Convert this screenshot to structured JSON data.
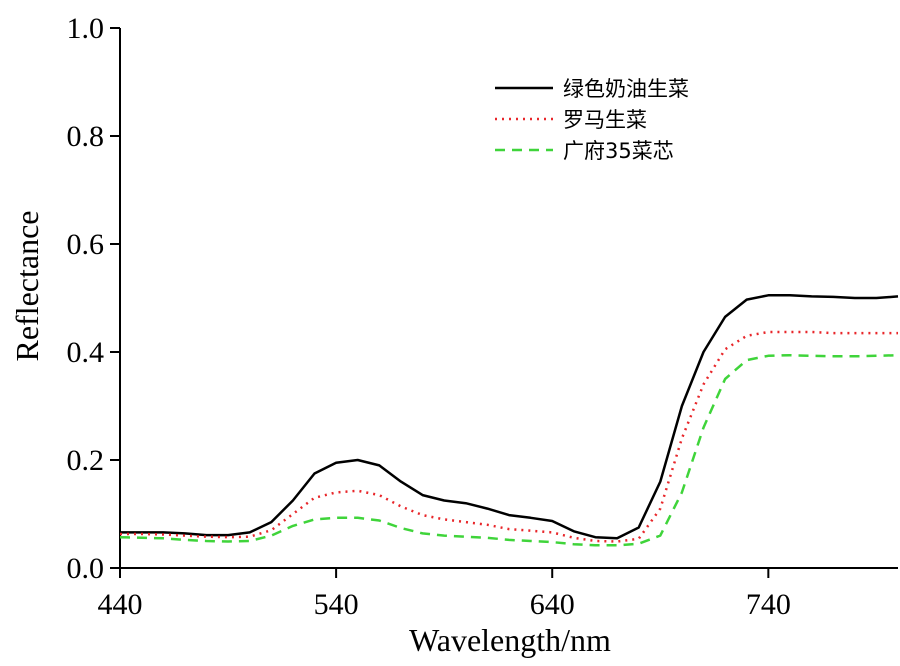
{
  "chart_data": {
    "type": "line",
    "title": "",
    "xlabel": "Wavelength/nm",
    "ylabel": "Reflectance",
    "xlim": [
      440,
      800
    ],
    "ylim": [
      0,
      1.0
    ],
    "xticks": [
      440,
      540,
      640,
      740
    ],
    "xtick_labels": [
      "440",
      "540",
      "640",
      "740"
    ],
    "yticks": [
      0,
      0.2,
      0.4,
      0.6,
      0.8,
      1.0
    ],
    "ytick_labels": [
      "0.0",
      "0.2",
      "0.4",
      "0.6",
      "0.8",
      "1.0"
    ],
    "grid": false,
    "legend_position": "top-right",
    "x": [
      440,
      450,
      460,
      470,
      480,
      490,
      500,
      510,
      520,
      530,
      540,
      550,
      560,
      570,
      580,
      590,
      600,
      610,
      620,
      630,
      640,
      650,
      660,
      670,
      680,
      690,
      700,
      710,
      720,
      730,
      740,
      750,
      760,
      770,
      780,
      790,
      800
    ],
    "series": [
      {
        "name": "绿色奶油生菜",
        "color": "#000000",
        "style": "solid",
        "values": [
          0.066,
          0.066,
          0.066,
          0.064,
          0.061,
          0.061,
          0.066,
          0.085,
          0.125,
          0.175,
          0.195,
          0.2,
          0.19,
          0.16,
          0.135,
          0.125,
          0.12,
          0.11,
          0.098,
          0.093,
          0.087,
          0.068,
          0.057,
          0.055,
          0.075,
          0.16,
          0.3,
          0.4,
          0.465,
          0.497,
          0.505,
          0.505,
          0.503,
          0.502,
          0.5,
          0.5,
          0.503
        ]
      },
      {
        "name": "罗马生菜",
        "color": "#e8262a",
        "style": "dotted",
        "values": [
          0.063,
          0.063,
          0.062,
          0.06,
          0.058,
          0.057,
          0.058,
          0.07,
          0.1,
          0.13,
          0.14,
          0.143,
          0.135,
          0.114,
          0.098,
          0.09,
          0.085,
          0.08,
          0.072,
          0.069,
          0.066,
          0.056,
          0.05,
          0.049,
          0.054,
          0.11,
          0.24,
          0.34,
          0.405,
          0.43,
          0.437,
          0.437,
          0.437,
          0.435,
          0.435,
          0.435,
          0.435
        ]
      },
      {
        "name": "广府35菜芯",
        "color": "#3fd43a",
        "style": "dashed",
        "values": [
          0.057,
          0.056,
          0.055,
          0.052,
          0.05,
          0.049,
          0.05,
          0.06,
          0.078,
          0.09,
          0.093,
          0.093,
          0.088,
          0.074,
          0.064,
          0.06,
          0.058,
          0.056,
          0.052,
          0.05,
          0.048,
          0.044,
          0.042,
          0.042,
          0.045,
          0.06,
          0.14,
          0.26,
          0.35,
          0.385,
          0.393,
          0.394,
          0.393,
          0.392,
          0.392,
          0.393,
          0.394
        ]
      }
    ]
  }
}
